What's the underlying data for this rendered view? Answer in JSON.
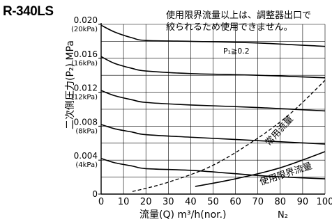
{
  "model": "R-340LS",
  "note_lines": [
    "使用限界流量以上は、調整器出口で",
    "絞られるため使用できません。"
  ],
  "chart_data": {
    "type": "line",
    "xlabel": "流量(Q) m³/h(nor.)",
    "x_unit": "N₂",
    "ylabel": "二次側圧力(P₂) MPa",
    "xlim": [
      0,
      100
    ],
    "ylim": [
      0,
      0.02
    ],
    "grid": true,
    "x_ticks": [
      0,
      10,
      20,
      30,
      40,
      50,
      60,
      70,
      80,
      90,
      100
    ],
    "y_ticks": [
      {
        "value": 0,
        "label": "0",
        "sub": ""
      },
      {
        "value": 0.004,
        "label": "0.004",
        "sub": "(4kPa)"
      },
      {
        "value": 0.008,
        "label": "0.008",
        "sub": "(8kPa)"
      },
      {
        "value": 0.012,
        "label": "0.012",
        "sub": "(12kPa)"
      },
      {
        "value": 0.016,
        "label": "0.016",
        "sub": "(16kPa)"
      },
      {
        "value": 0.02,
        "label": "0.020",
        "sub": "(20kPa)"
      }
    ],
    "inlet_label": "P₁≧0.2",
    "series": [
      {
        "style": "solid",
        "points": [
          [
            0,
            0.0199
          ],
          [
            6,
            0.0191
          ],
          [
            14,
            0.0184
          ],
          [
            20,
            0.0181
          ],
          [
            40,
            0.018
          ],
          [
            70,
            0.0178
          ],
          [
            100,
            0.0174
          ]
        ]
      },
      {
        "style": "solid",
        "points": [
          [
            0,
            0.0162
          ],
          [
            6,
            0.0154
          ],
          [
            14,
            0.0148
          ],
          [
            20,
            0.0145
          ],
          [
            40,
            0.0142
          ],
          [
            70,
            0.014
          ],
          [
            100,
            0.0137
          ]
        ]
      },
      {
        "style": "solid",
        "points": [
          [
            0,
            0.0122
          ],
          [
            6,
            0.0116
          ],
          [
            14,
            0.0111
          ],
          [
            20,
            0.0108
          ],
          [
            40,
            0.0105
          ],
          [
            70,
            0.0102
          ],
          [
            100,
            0.0098
          ]
        ]
      },
      {
        "style": "solid",
        "points": [
          [
            0,
            0.0082
          ],
          [
            6,
            0.0077
          ],
          [
            14,
            0.0073
          ],
          [
            20,
            0.007
          ],
          [
            40,
            0.0067
          ],
          [
            70,
            0.0063
          ],
          [
            100,
            0.0059
          ]
        ]
      },
      {
        "style": "solid",
        "points": [
          [
            0,
            0.0042
          ],
          [
            6,
            0.0037
          ],
          [
            14,
            0.0033
          ],
          [
            20,
            0.003
          ],
          [
            40,
            0.0028
          ],
          [
            60,
            0.0024
          ],
          [
            75,
            0.0021
          ],
          [
            100,
            0.0018
          ]
        ]
      },
      {
        "name": "常用流量",
        "style": "dashed",
        "points": [
          [
            14,
            0.0003
          ],
          [
            30,
            0.0014
          ],
          [
            50,
            0.0034
          ],
          [
            70,
            0.0066
          ],
          [
            85,
            0.0096
          ],
          [
            100,
            0.0134
          ]
        ]
      },
      {
        "name": "使用限界流量",
        "style": "solid",
        "points": [
          [
            42,
            0.0009
          ],
          [
            60,
            0.0018
          ],
          [
            80,
            0.0031
          ],
          [
            100,
            0.005
          ]
        ]
      }
    ]
  }
}
